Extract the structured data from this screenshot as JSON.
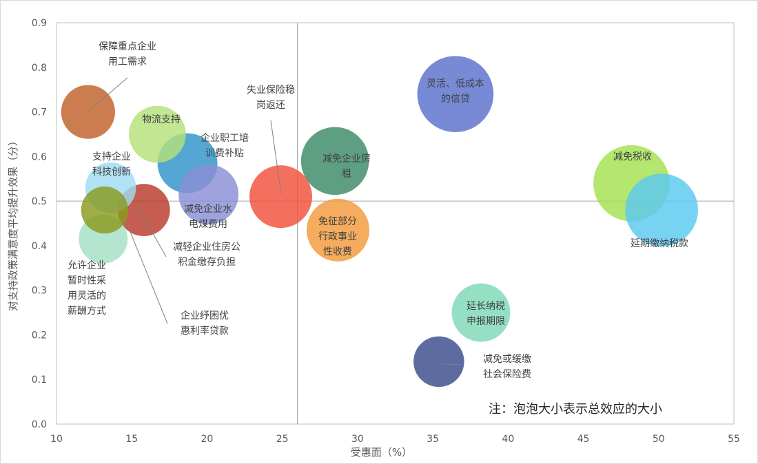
{
  "chart_data": {
    "type": "bubble",
    "xlabel": "受惠面（%）",
    "ylabel": "对支持政策满意度平均提升效果（分）",
    "xlim": [
      10,
      55
    ],
    "ylim": [
      0,
      0.9
    ],
    "xticks": [
      "10",
      "15",
      "20",
      "25",
      "30",
      "35",
      "40",
      "45",
      "50",
      "55"
    ],
    "yticks": [
      "0.0",
      "0.1",
      "0.2",
      "0.3",
      "0.4",
      "0.5",
      "0.6",
      "0.7",
      "0.8",
      "0.9"
    ],
    "reference_lines": {
      "x": 26,
      "y": 0.5
    },
    "note": "注：泡泡大小表示总效应的大小",
    "bubbles": [
      {
        "label": [
          "保障重点企业",
          "用工需求"
        ],
        "x": 12.1,
        "y": 0.7,
        "size": 1.7,
        "color": "#c0602a"
      },
      {
        "label": [
          "物流支持"
        ],
        "x": 16.7,
        "y": 0.65,
        "size": 1.9,
        "color": "#b5e07a"
      },
      {
        "label": [
          "企业职工培",
          "训费补贴"
        ],
        "x": 18.7,
        "y": 0.585,
        "size": 2.1,
        "color": "#2e94c9"
      },
      {
        "label": [
          "支持企业",
          "科技创新"
        ],
        "x": 13.6,
        "y": 0.53,
        "size": 1.5,
        "color": "#9fdcf0"
      },
      {
        "label": [
          "减免企业水",
          "电煤费用"
        ],
        "x": 20.1,
        "y": 0.515,
        "size": 2.1,
        "color": "#8a8fd6"
      },
      {
        "label": [
          "减轻企业住房公",
          "积金缴存负担"
        ],
        "x": 15.8,
        "y": 0.48,
        "size": 1.6,
        "color": "#b83a2a"
      },
      {
        "label": [
          "企业纾困优",
          "惠利率贷款"
        ],
        "x": 13.2,
        "y": 0.48,
        "size": 1.3,
        "color": "#8a9a1e"
      },
      {
        "label": [
          "允许企业",
          "暂时性采",
          "用灵活的",
          "薪酬方式"
        ],
        "x": 13.1,
        "y": 0.415,
        "size": 1.4,
        "color": "#a3dfc5"
      },
      {
        "label": [
          "失业保险稳",
          "岗返还"
        ],
        "x": 24.9,
        "y": 0.51,
        "size": 2.3,
        "color": "#f0503c"
      },
      {
        "label": [
          "减免企业房",
          "租"
        ],
        "x": 28.5,
        "y": 0.59,
        "size": 2.7,
        "color": "#3a8a68"
      },
      {
        "label": [
          "免征部分",
          "行政事业",
          "性收费"
        ],
        "x": 28.7,
        "y": 0.435,
        "size": 2.3,
        "color": "#f39a3b"
      },
      {
        "label": [
          "灵活、低成本",
          "的信贷"
        ],
        "x": 36.5,
        "y": 0.74,
        "size": 3.4,
        "color": "#5a6fcc"
      },
      {
        "label": [
          "减免税收"
        ],
        "x": 48.2,
        "y": 0.54,
        "size": 3.4,
        "color": "#a3e050"
      },
      {
        "label": [
          "延期缴纳税款"
        ],
        "x": 50.2,
        "y": 0.48,
        "size": 3.1,
        "color": "#5ac8ef"
      },
      {
        "label": [
          "延长纳税",
          "申报期限"
        ],
        "x": 38.2,
        "y": 0.25,
        "size": 2.0,
        "color": "#7ed9b8"
      },
      {
        "label": [
          "减免或缓缴",
          "社会保险费"
        ],
        "x": 35.4,
        "y": 0.14,
        "size": 1.5,
        "color": "#3a4a8c"
      }
    ]
  }
}
